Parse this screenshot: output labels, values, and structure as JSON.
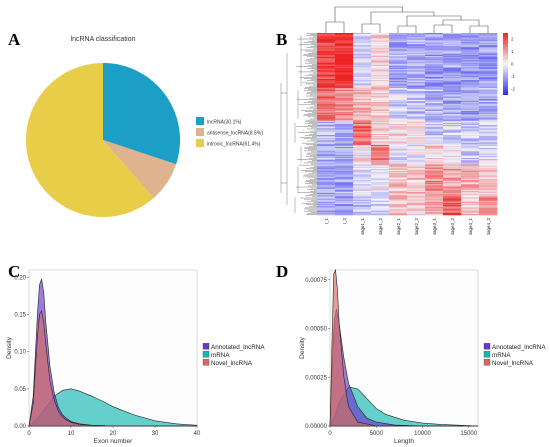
{
  "panels": {
    "a": "A",
    "b": "B",
    "c": "C",
    "d": "D"
  },
  "colors": {
    "lncrna": "#1b9fc6",
    "antisense": "#deb38e",
    "intronic": "#e8cd49",
    "annotated": "#6a35d0",
    "mrna": "#14b9b0",
    "novel": "#d56c5a",
    "heat_high": "#ee2222",
    "heat_mid": "#f4f4f8",
    "heat_low": "#2a2aef"
  },
  "chart_data": [
    {
      "id": "A",
      "type": "pie",
      "title": "lncRNA classification",
      "slices": [
        {
          "label": "lncRNA(30.1%)",
          "value": 30.1,
          "color": "#1b9fc6"
        },
        {
          "label": "antisense_lncRNA(8.5%)",
          "value": 8.5,
          "color": "#deb38e"
        },
        {
          "label": "intronic_lncRNA(61.4%)",
          "value": 61.4,
          "color": "#e8cd49"
        }
      ],
      "legend_position": "right"
    },
    {
      "id": "B",
      "type": "heatmap",
      "columns": [
        "I_1",
        "I_2",
        "stage1_1",
        "stage1_2",
        "stage2_1",
        "stage2_2",
        "stage3_1",
        "stage3_2",
        "stage4_1",
        "stage4_2"
      ],
      "colorbar_ticks": [
        2,
        1,
        0,
        -1,
        -2
      ],
      "value_range": [
        -2.5,
        2.5
      ],
      "row_clusters": [
        {
          "rows": 50,
          "profile": [
            2.2,
            2.5,
            -0.3,
            0.3,
            -0.9,
            -0.9,
            -1.0,
            -1.0,
            -1.1,
            -1.1
          ]
        },
        {
          "rows": 30,
          "profile": [
            1.6,
            1.3,
            0.8,
            0.5,
            -0.4,
            -0.6,
            -0.8,
            -0.9,
            -1.0,
            -0.9
          ]
        },
        {
          "rows": 22,
          "profile": [
            -0.8,
            -0.8,
            1.6,
            0.4,
            0.3,
            0.2,
            -0.5,
            -0.4,
            -0.6,
            -0.5
          ]
        },
        {
          "rows": 18,
          "profile": [
            -0.9,
            -0.9,
            0.2,
            1.5,
            -0.2,
            -0.1,
            0.4,
            0.2,
            -0.5,
            -0.3
          ]
        },
        {
          "rows": 28,
          "profile": [
            -0.9,
            -1.0,
            -0.2,
            0.0,
            0.5,
            0.6,
            1.2,
            1.0,
            0.8,
            0.6
          ]
        },
        {
          "rows": 18,
          "profile": [
            -1.0,
            -1.0,
            -0.6,
            -0.5,
            0.7,
            0.4,
            0.9,
            1.8,
            0.6,
            1.2
          ]
        }
      ]
    },
    {
      "id": "C",
      "type": "area",
      "xlabel": "Exon number",
      "ylabel": "Density",
      "xlim": [
        0,
        40
      ],
      "ylim": [
        0,
        0.21
      ],
      "x_ticks": [
        0,
        10,
        20,
        30,
        40
      ],
      "y_ticks": [
        0.0,
        0.05,
        0.1,
        0.15,
        0.2
      ],
      "y_tick_labels": [
        "0.00",
        "0.05",
        "0.10",
        "0.15",
        "0.20"
      ],
      "series": [
        {
          "name": "Annotated_lncRNA",
          "color": "#6a35d0",
          "x": [
            0,
            1,
            2,
            2.5,
            3,
            3.5,
            4,
            5,
            6,
            7,
            8,
            9,
            10,
            12,
            15,
            20,
            30,
            40
          ],
          "y": [
            0.0,
            0.04,
            0.15,
            0.19,
            0.198,
            0.18,
            0.14,
            0.08,
            0.045,
            0.025,
            0.015,
            0.01,
            0.006,
            0.003,
            0.001,
            0.0,
            0.0,
            0.0
          ]
        },
        {
          "name": "mRNA",
          "color": "#14b9b0",
          "x": [
            0,
            2,
            4,
            6,
            8,
            10,
            12,
            15,
            18,
            20,
            25,
            30,
            35,
            40
          ],
          "y": [
            0.0,
            0.01,
            0.025,
            0.04,
            0.048,
            0.05,
            0.047,
            0.04,
            0.032,
            0.026,
            0.015,
            0.007,
            0.003,
            0.001
          ]
        },
        {
          "name": "Novel_lncRNA",
          "color": "#d56c5a",
          "x": [
            0,
            1,
            2,
            2.5,
            3,
            3.5,
            4,
            5,
            6,
            7,
            8,
            9,
            10,
            12,
            15,
            20,
            30,
            40
          ],
          "y": [
            0.0,
            0.03,
            0.12,
            0.15,
            0.155,
            0.14,
            0.11,
            0.06,
            0.035,
            0.02,
            0.012,
            0.008,
            0.005,
            0.002,
            0.001,
            0.0,
            0.0,
            0.0
          ]
        }
      ],
      "legend_position": "right"
    },
    {
      "id": "D",
      "type": "area",
      "xlabel": "Length",
      "ylabel": "Density",
      "xlim": [
        0,
        16000
      ],
      "ylim": [
        0,
        0.0008
      ],
      "x_ticks": [
        0,
        5000,
        10000,
        15000
      ],
      "y_ticks": [
        0.0,
        0.00025,
        0.0005,
        0.00075
      ],
      "y_tick_labels": [
        "0.00000",
        "0.00025",
        "0.00050",
        "0.00075"
      ],
      "series": [
        {
          "name": "Annotated_lncRNA",
          "color": "#6a35d0",
          "x": [
            0,
            300,
            500,
            700,
            1000,
            1500,
            2000,
            3000,
            4000,
            5000,
            7000,
            10000,
            16000
          ],
          "y": [
            0.0,
            0.0004,
            0.00055,
            0.0006,
            0.00052,
            0.00035,
            0.00022,
            0.0001,
            4e-05,
            2e-05,
            5e-06,
            0.0,
            0.0
          ]
        },
        {
          "name": "mRNA",
          "color": "#14b9b0",
          "x": [
            0,
            500,
            1000,
            2000,
            3000,
            4000,
            5000,
            6000,
            8000,
            10000,
            12000,
            16000
          ],
          "y": [
            0.0,
            5e-05,
            0.00012,
            0.0002,
            0.00019,
            0.00014,
            9e-05,
            6e-05,
            3e-05,
            1.5e-05,
            8e-06,
            0.0
          ]
        },
        {
          "name": "Novel_lncRNA",
          "color": "#d56c5a",
          "x": [
            0,
            200,
            400,
            600,
            800,
            1000,
            1500,
            2000,
            3000,
            5000,
            8000,
            16000
          ],
          "y": [
            0.0,
            0.0004,
            0.00078,
            0.0008,
            0.0007,
            0.00052,
            0.00025,
            0.0001,
            2e-05,
            0.0,
            0.0,
            0.0
          ]
        }
      ],
      "legend_position": "right"
    }
  ]
}
